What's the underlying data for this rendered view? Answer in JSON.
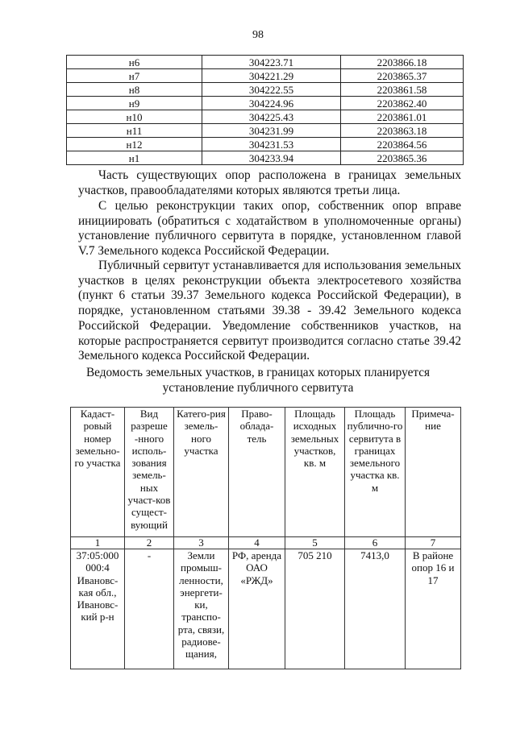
{
  "page_number": "98",
  "coordinates_table": [
    [
      "н6",
      "304223.71",
      "2203866.18"
    ],
    [
      "н7",
      "304221.29",
      "2203865.37"
    ],
    [
      "н8",
      "304222.55",
      "2203861.58"
    ],
    [
      "н9",
      "304224.96",
      "2203862.40"
    ],
    [
      "н10",
      "304225.43",
      "2203861.01"
    ],
    [
      "н11",
      "304231.99",
      "2203863.18"
    ],
    [
      "н12",
      "304231.53",
      "2203864.56"
    ],
    [
      "н1",
      "304233.94",
      "2203865.36"
    ]
  ],
  "paragraphs": [
    "Часть существующих опор расположена в границах земельных участков, правообладателями которых являются третьи лица.",
    "С целью реконструкции таких опор, собственник опор вправе инициировать (обратиться с ходатайством в уполномоченные органы) установление публичного сервитута в порядке, установленном главой V.7 Земельного кодекса Российской Федерации.",
    "Публичный сервитут устанавливается для использования земельных участков в целях реконструкции объекта электросетевого хозяйства (пункт 6 статьи 39.37 Земельного кодекса Российской Федерации), в порядке, установленном статьями 39.38 - 39.42 Земельного кодекса Российской Федерации. Уведомление собственников участков, на которые распространяется сервитут производится согласно статье 39.42 Земельного кодекса Российской Федерации."
  ],
  "table_title": [
    "Ведомость земельных участков, в границах которых планируется",
    "установление публичного сервитута"
  ],
  "parcels_table": {
    "headers": [
      "Кадаст-ровый номер земельно-го участка",
      "Вид разреше -нного исполь-зования земель-ных участ-ков сущест-вующий",
      "Катего-рия земель-ного участка",
      "Право-облада-тель",
      "Площадь исходных земельных участков, кв. м",
      "Площадь публично-го сервитута в границах земельного участка кв. м",
      "Примеча-ние"
    ],
    "numbers": [
      "1",
      "2",
      "3",
      "4",
      "5",
      "6",
      "7"
    ],
    "rows": [
      [
        "37:05:000 000:4 Ивановс-кая обл., Ивановс-кий р-н",
        "-",
        "Земли промыш-ленности, энергети-ки, транспо-рта, связи, радиове-щания,",
        "РФ, аренда ОАО «РЖД»",
        "705 210",
        "7413,0",
        "В районе опор 16 и 17"
      ]
    ]
  }
}
